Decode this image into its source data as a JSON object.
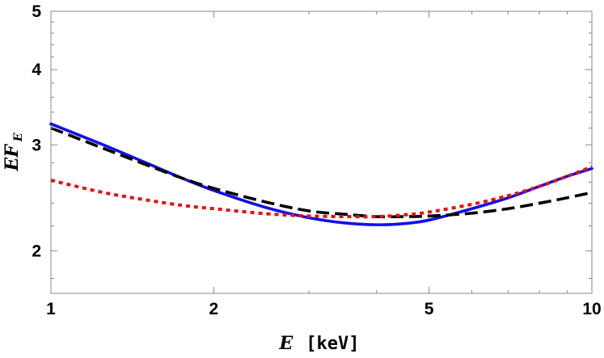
{
  "chart_data": {
    "type": "line",
    "xscale": "log",
    "yscale": "log",
    "xlim": [
      1,
      10
    ],
    "ylim": [
      1.7,
      5
    ],
    "grid": false,
    "xticks": [
      {
        "value": 1,
        "label": "1"
      },
      {
        "value": 2,
        "label": "2"
      },
      {
        "value": 5,
        "label": "5"
      },
      {
        "value": 10,
        "label": "10"
      }
    ],
    "yticks": [
      {
        "value": 2,
        "label": "2"
      },
      {
        "value": 3,
        "label": "3"
      },
      {
        "value": 4,
        "label": "4"
      },
      {
        "value": 5,
        "label": "5"
      }
    ],
    "xlabel": {
      "symbol": "E",
      "unit": "[keV]"
    },
    "ylabel": {
      "main": "EF",
      "subscript": "E"
    },
    "series": [
      {
        "style": "solid",
        "color": "#1010e8",
        "x": [
          1,
          1.25,
          1.5,
          1.75,
          2,
          2.5,
          3,
          3.5,
          4,
          4.5,
          5,
          6,
          7,
          8,
          9,
          10
        ],
        "y": [
          3.25,
          3.0,
          2.8,
          2.64,
          2.52,
          2.36,
          2.27,
          2.225,
          2.21,
          2.22,
          2.25,
          2.35,
          2.45,
          2.56,
          2.66,
          2.74
        ]
      },
      {
        "style": "dashed",
        "color": "#000000",
        "x": [
          1,
          1.25,
          1.5,
          1.75,
          2,
          2.5,
          3,
          3.5,
          4,
          4.5,
          5,
          6,
          7,
          8,
          9,
          10
        ],
        "y": [
          3.2,
          2.96,
          2.78,
          2.64,
          2.54,
          2.41,
          2.33,
          2.3,
          2.28,
          2.28,
          2.285,
          2.31,
          2.35,
          2.4,
          2.45,
          2.5
        ]
      },
      {
        "style": "dotted",
        "color": "#e81010",
        "x": [
          1,
          1.25,
          1.5,
          1.75,
          2,
          2.5,
          3,
          3.5,
          4,
          4.5,
          5,
          6,
          7,
          8,
          9,
          10
        ],
        "y": [
          2.62,
          2.5,
          2.43,
          2.38,
          2.35,
          2.305,
          2.285,
          2.28,
          2.28,
          2.295,
          2.32,
          2.39,
          2.47,
          2.56,
          2.66,
          2.76
        ]
      }
    ]
  }
}
